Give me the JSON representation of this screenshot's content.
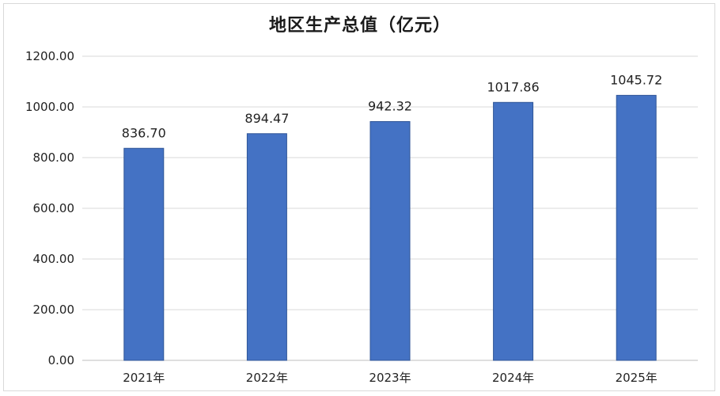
{
  "chart_data": {
    "type": "bar",
    "title": "地区生产总值（亿元）",
    "categories": [
      "2021年",
      "2022年",
      "2023年",
      "2024年",
      "2025年"
    ],
    "values": [
      836.7,
      894.47,
      942.32,
      1017.86,
      1045.72
    ],
    "value_labels": [
      "836.70",
      "894.47",
      "942.32",
      "1017.86",
      "1045.72"
    ],
    "ylim": [
      0,
      1200
    ],
    "yticks": [
      0,
      200,
      400,
      600,
      800,
      1000,
      1200
    ],
    "ytick_labels": [
      "0.00",
      "200.00",
      "400.00",
      "600.00",
      "800.00",
      "1000.00",
      "1200.00"
    ],
    "grid": true,
    "legend": "none",
    "colors": {
      "bar": "#4472c4",
      "bar_edge": "#2f5597",
      "grid": "#d9d9d9"
    }
  }
}
